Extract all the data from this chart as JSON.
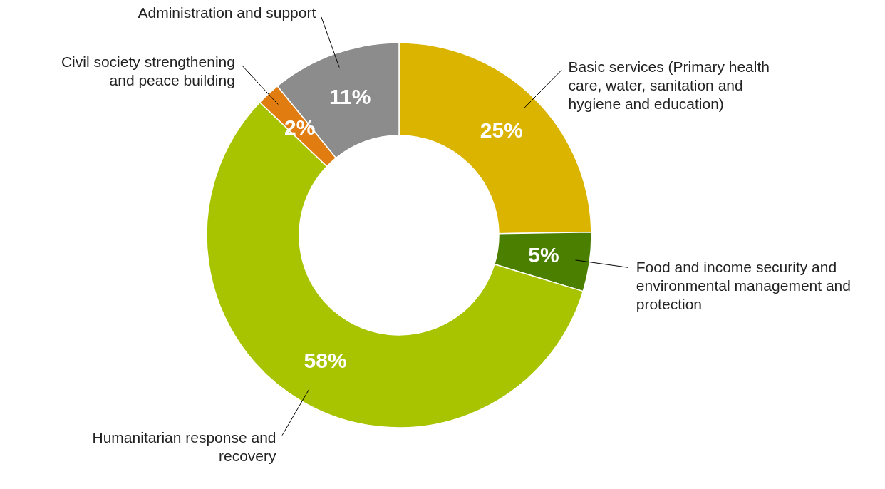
{
  "chart_data": {
    "type": "donut",
    "categories": [
      "Basic services (Primary health care, water, sanitation and hygiene and education)",
      "Food and income security and environmental management and protection",
      "Humanitarian response and recovery",
      "Civil society strengthening and peace building",
      "Administration and support"
    ],
    "values": [
      25,
      5,
      58,
      2,
      11
    ],
    "colors": [
      "#dbb400",
      "#4a7f00",
      "#a8c400",
      "#e07c10",
      "#8c8c8c"
    ],
    "value_labels": [
      "25%",
      "5%",
      "58%",
      "2%",
      "11%"
    ]
  }
}
